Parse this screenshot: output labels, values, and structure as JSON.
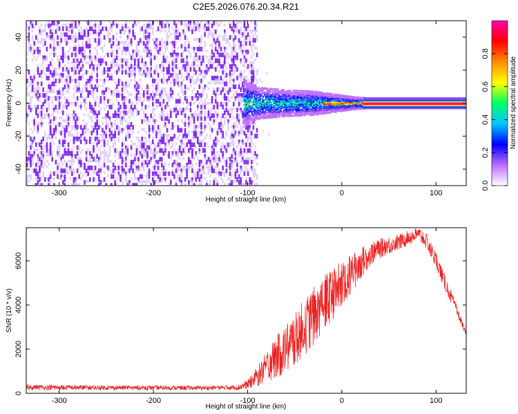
{
  "title": "C2E5.2026.076.20.34.R21",
  "colors": {
    "snr_line": "#ee2222",
    "spectrogram_scatter": "#7a1cf2",
    "spectrogram_haze": "#d6c2ff",
    "background": "#ffffff"
  },
  "chart_data": [
    {
      "type": "heatmap",
      "name": "spectrogram",
      "xlabel": "Height of straight line (km)",
      "ylabel": "Frequency (Hz)",
      "xlim": [
        -335,
        132
      ],
      "ylim": [
        -50,
        50
      ],
      "xticks": [
        -300,
        -200,
        -100,
        0,
        100
      ],
      "yticks": [
        -40,
        -20,
        0,
        20,
        40
      ],
      "noise_region_x": [
        -335,
        -90
      ],
      "signal_onset_x": -105,
      "carrier_frequency_hz": 0,
      "carrier_spread_hz": [
        [
          -105,
          9
        ],
        [
          -90,
          6
        ],
        [
          -60,
          5
        ],
        [
          -30,
          4.5
        ],
        [
          -10,
          3.5
        ],
        [
          0,
          3
        ],
        [
          10,
          2.5
        ],
        [
          25,
          2
        ],
        [
          132,
          2
        ]
      ],
      "colorbar": {
        "label": "Normalized spectral amplitude",
        "range": [
          0,
          1
        ],
        "ticks": [
          "0.0",
          "0.2",
          "0.4",
          "0.6",
          "0.8"
        ],
        "tick_values": [
          0,
          0.2,
          0.4,
          0.6,
          0.8
        ],
        "colormap": [
          "#ffffff",
          "#bd6cff",
          "#0000ff",
          "#00c8ff",
          "#00ff66",
          "#ffff00",
          "#ff8c00",
          "#ff0000",
          "#ff00aa"
        ]
      }
    },
    {
      "type": "line",
      "name": "snr",
      "xlabel": "Height of straight line (km)",
      "ylabel": "SNR (10 * v/v)",
      "xlim": [
        -335,
        132
      ],
      "ylim": [
        0,
        7500
      ],
      "xticks": [
        -300,
        -200,
        -100,
        0,
        100
      ],
      "yticks": [
        0,
        2000,
        4000,
        6000
      ],
      "envelope": {
        "x": [
          -335,
          -300,
          -250,
          -200,
          -150,
          -110,
          -100,
          -90,
          -80,
          -70,
          -60,
          -50,
          -40,
          -30,
          -20,
          -10,
          0,
          10,
          20,
          30,
          40,
          50,
          60,
          70,
          80,
          85,
          90,
          100,
          110,
          120,
          132
        ],
        "low": [
          150,
          150,
          150,
          150,
          150,
          150,
          200,
          300,
          500,
          700,
          900,
          1300,
          1700,
          2200,
          2800,
          3300,
          3900,
          4500,
          5200,
          5800,
          6100,
          6300,
          6500,
          6700,
          6900,
          6800,
          6500,
          5700,
          4600,
          3700,
          2600
        ],
        "high": [
          400,
          380,
          360,
          350,
          340,
          380,
          600,
          1200,
          1900,
          2600,
          3100,
          3600,
          4300,
          4800,
          5300,
          5700,
          6000,
          6300,
          6600,
          6800,
          7000,
          7100,
          7200,
          7350,
          7500,
          7450,
          7200,
          6400,
          5300,
          4200,
          2800
        ]
      }
    }
  ]
}
